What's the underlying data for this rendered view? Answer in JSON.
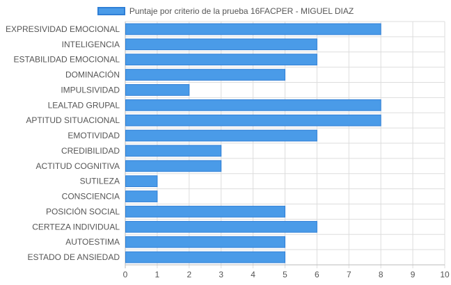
{
  "chart_data": {
    "type": "bar",
    "orientation": "horizontal",
    "categories": [
      "EXPRESIVIDAD EMOCIONAL",
      "INTELIGENCIA",
      "ESTABILIDAD EMOCIONAL",
      "DOMINACIÓN",
      "IMPULSIVIDAD",
      "LEALTAD GRUPAL",
      "APTITUD SITUACIONAL",
      "EMOTIVIDAD",
      "CREDIBILIDAD",
      "ACTITUD COGNITIVA",
      "SUTILEZA",
      "CONSCIENCIA",
      "POSICIÓN SOCIAL",
      "CERTEZA INDIVIDUAL",
      "AUTOESTIMA",
      "ESTADO DE ANSIEDAD"
    ],
    "series": [
      {
        "name": "Puntaje por criterio de la prueba 16FACPER - MIGUEL DIAZ",
        "values": [
          8,
          6,
          6,
          5,
          2,
          8,
          8,
          6,
          3,
          3,
          1,
          1,
          5,
          6,
          5,
          5
        ]
      }
    ],
    "xlim": [
      0,
      10
    ],
    "xticks": [
      "0",
      "1",
      "2",
      "3",
      "4",
      "5",
      "6",
      "7",
      "8",
      "9",
      "10"
    ],
    "grid": true,
    "legend_position": "top-center",
    "colors": {
      "bar_fill": "#4a9be8",
      "bar_stroke": "#2f7fd6",
      "grid": "#dddddd",
      "axis": "#bbbbbb"
    }
  }
}
